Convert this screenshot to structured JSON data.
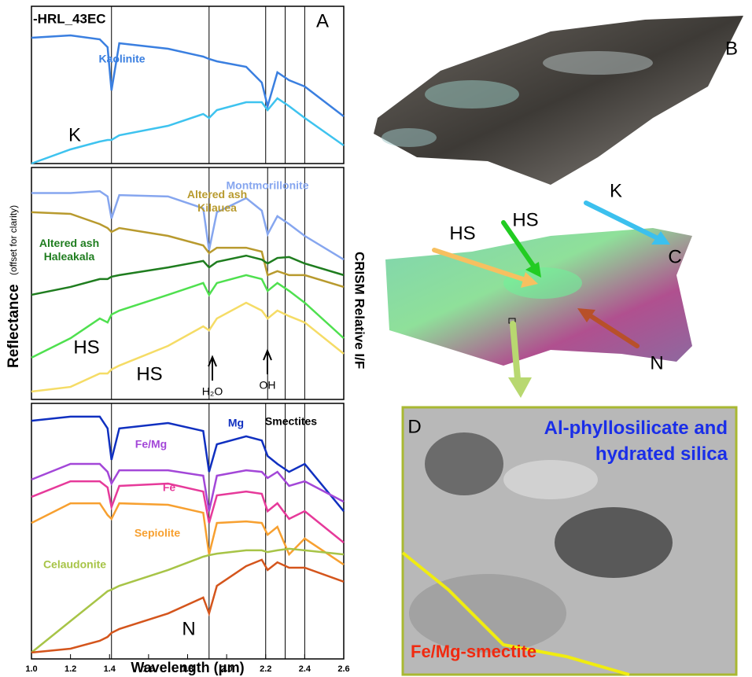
{
  "chart_data": [
    {
      "type": "line",
      "title": "-HRL_43EC",
      "panel_label": "A",
      "xlim": [
        1.0,
        2.6
      ],
      "ylim": [
        0,
        1
      ],
      "x": [
        1.0,
        1.2,
        1.35,
        1.39,
        1.41,
        1.45,
        1.7,
        1.88,
        1.91,
        1.95,
        2.1,
        2.18,
        2.21,
        2.26,
        2.32,
        2.4,
        2.6
      ],
      "vlines": [
        1.41,
        1.91,
        2.2,
        2.3,
        2.4
      ],
      "series": [
        {
          "name": "Kaolinite",
          "color": "#3a7fe0",
          "values": [
            0.8,
            0.815,
            0.79,
            0.74,
            0.465,
            0.765,
            0.73,
            0.68,
            0.665,
            0.65,
            0.615,
            0.515,
            0.365,
            0.58,
            0.53,
            0.49,
            0.3
          ]
        },
        {
          "name": "K",
          "color": "#3ec3ef",
          "values": [
            0,
            0.09,
            0.14,
            0.15,
            0.15,
            0.18,
            0.24,
            0.315,
            0.29,
            0.34,
            0.39,
            0.39,
            0.34,
            0.415,
            0.365,
            0.29,
            0.115
          ]
        }
      ]
    },
    {
      "type": "line",
      "xlim": [
        1.0,
        2.6
      ],
      "ylim": [
        0,
        1
      ],
      "x": [
        1.0,
        1.2,
        1.35,
        1.39,
        1.41,
        1.45,
        1.7,
        1.88,
        1.91,
        1.95,
        2.1,
        2.18,
        2.21,
        2.26,
        2.32,
        2.4,
        2.6
      ],
      "vlines": [
        1.41,
        1.91,
        2.21,
        2.3,
        2.4
      ],
      "annotations": [
        "H₂O",
        "OH"
      ],
      "series": [
        {
          "name": "Montmorillonite",
          "color": "#86a6ef",
          "values": [
            0.89,
            0.89,
            0.898,
            0.875,
            0.78,
            0.881,
            0.875,
            0.824,
            0.644,
            0.807,
            0.868,
            0.814,
            0.712,
            0.79,
            0.756,
            0.705,
            0.603
          ]
        },
        {
          "name": "Altered ash Kilauea",
          "color": "#b89a2e",
          "values": [
            0.807,
            0.8,
            0.756,
            0.739,
            0.722,
            0.739,
            0.705,
            0.664,
            0.631,
            0.654,
            0.654,
            0.637,
            0.536,
            0.553,
            0.536,
            0.536,
            0.485
          ]
        },
        {
          "name": "Altered ash Haleakala",
          "color": "#1f7d1f",
          "values": [
            0.451,
            0.485,
            0.519,
            0.519,
            0.529,
            0.536,
            0.569,
            0.597,
            0.569,
            0.593,
            0.62,
            0.603,
            0.586,
            0.61,
            0.614,
            0.586,
            0.536
          ]
        },
        {
          "name": "HS",
          "color": "#4fe04f",
          "values": [
            0.18,
            0.264,
            0.349,
            0.332,
            0.366,
            0.383,
            0.451,
            0.502,
            0.451,
            0.502,
            0.536,
            0.519,
            0.468,
            0.502,
            0.468,
            0.417,
            0.264
          ]
        },
        {
          "name": "HS",
          "color": "#f5dc66",
          "values": [
            0.034,
            0.054,
            0.112,
            0.112,
            0.129,
            0.146,
            0.231,
            0.315,
            0.298,
            0.349,
            0.417,
            0.383,
            0.349,
            0.383,
            0.359,
            0.332,
            0.197
          ]
        }
      ]
    },
    {
      "type": "line",
      "x_label": "Wavelength (μm)",
      "xlim": [
        1.0,
        2.6
      ],
      "ylim": [
        0,
        1
      ],
      "xticks": [
        {
          "value": 1.0,
          "label": "1.0"
        },
        1.2,
        1.4,
        1.6,
        1.8,
        {
          "value": 2.0,
          "label": "2.0"
        },
        2.2,
        2.4,
        2.6
      ],
      "x": [
        1.0,
        1.2,
        1.35,
        1.39,
        1.41,
        1.45,
        1.7,
        1.88,
        1.91,
        1.95,
        2.1,
        2.18,
        2.21,
        2.26,
        2.32,
        2.4,
        2.6
      ],
      "vlines": [
        1.41,
        1.91,
        2.2,
        2.3,
        2.4
      ],
      "annotations": [
        "Smectites"
      ],
      "series": [
        {
          "name": "Mg",
          "color": "#1030c0",
          "values": [
            0.932,
            0.948,
            0.948,
            0.902,
            0.779,
            0.902,
            0.923,
            0.892,
            0.732,
            0.84,
            0.871,
            0.855,
            0.794,
            0.763,
            0.732,
            0.763,
            0.578
          ]
        },
        {
          "name": "Fe/Mg",
          "color": "#a347d8",
          "values": [
            0.702,
            0.763,
            0.763,
            0.732,
            0.686,
            0.738,
            0.738,
            0.717,
            0.578,
            0.717,
            0.738,
            0.732,
            0.708,
            0.732,
            0.677,
            0.695,
            0.615
          ]
        },
        {
          "name": "Fe",
          "color": "#e63a9a",
          "values": [
            0.634,
            0.695,
            0.695,
            0.671,
            0.594,
            0.677,
            0.686,
            0.655,
            0.532,
            0.64,
            0.655,
            0.646,
            0.578,
            0.609,
            0.548,
            0.578,
            0.455
          ]
        },
        {
          "name": "Sepiolite",
          "color": "#f7a030",
          "values": [
            0.532,
            0.609,
            0.609,
            0.563,
            0.548,
            0.609,
            0.603,
            0.572,
            0.409,
            0.532,
            0.538,
            0.532,
            0.486,
            0.517,
            0.409,
            0.471,
            0.369
          ]
        },
        {
          "name": "Celaudonite",
          "color": "#a7c447",
          "values": [
            0.025,
            0.148,
            0.24,
            0.265,
            0.271,
            0.286,
            0.348,
            0.4,
            0.406,
            0.412,
            0.425,
            0.425,
            0.418,
            0.425,
            0.431,
            0.425,
            0.409
          ]
        },
        {
          "name": "N",
          "color": "#d4551c",
          "values": [
            0.025,
            0.04,
            0.071,
            0.086,
            0.102,
            0.117,
            0.178,
            0.24,
            0.178,
            0.286,
            0.363,
            0.388,
            0.348,
            0.378,
            0.357,
            0.357,
            0.302
          ]
        }
      ]
    }
  ],
  "figure": {
    "y_label": "Reflectance",
    "y_label_note": "(offset for clarity)",
    "y2_label": "CRISM Relative I/F",
    "images": {
      "b_label": "B",
      "c_label": "C",
      "d_label": "D",
      "k_label": "K",
      "hs_label_1": "HS",
      "hs_label_2": "HS",
      "n_label": "N",
      "d_text_1": "Al-phyllosilicate and hydrated silica",
      "d_text_2": "Fe/Mg-smectite"
    }
  }
}
